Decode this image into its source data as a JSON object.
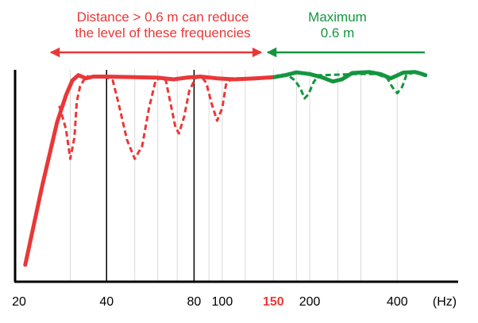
{
  "colors": {
    "red": "#ea3737",
    "green": "#13963f",
    "axis": "#000000",
    "grid": "#d9d9d9",
    "marker": "#000000"
  },
  "annotations": {
    "left_line1": "Distance > 0.6 m can reduce",
    "left_line2": "the level of these frequencies",
    "right_line1": "Maximum",
    "right_line2": "0.6 m"
  },
  "chart_data": {
    "type": "line",
    "xscale": "log",
    "xlim": [
      19.5,
      540
    ],
    "ylim": [
      0,
      100
    ],
    "xticks": [
      {
        "value": 20,
        "label": "20",
        "highlight": false
      },
      {
        "value": 40,
        "label": "40",
        "highlight": false
      },
      {
        "value": 80,
        "label": "80",
        "highlight": false
      },
      {
        "value": 100,
        "label": "100",
        "highlight": false
      },
      {
        "value": 150,
        "label": "150",
        "highlight": true
      },
      {
        "value": 200,
        "label": "200",
        "highlight": false
      },
      {
        "value": 400,
        "label": "400",
        "highlight": false
      }
    ],
    "xunit": "(Hz)",
    "vertical_markers": [
      40,
      80
    ],
    "gridlines": [
      30,
      50,
      60,
      70,
      90,
      100,
      120,
      150,
      180,
      200,
      250,
      300,
      400
    ],
    "boundary": 150,
    "series": [
      {
        "style": "solid",
        "color": "red",
        "points": [
          [
            21,
            8
          ],
          [
            24,
            45
          ],
          [
            27,
            75
          ],
          [
            29,
            88
          ],
          [
            30.5,
            95
          ],
          [
            32,
            97.5
          ],
          [
            34,
            96
          ],
          [
            36,
            96.8
          ],
          [
            40,
            96.8
          ],
          [
            50,
            96.5
          ],
          [
            60,
            96.3
          ],
          [
            68,
            95.5
          ],
          [
            76,
            96.4
          ],
          [
            84,
            96.8
          ],
          [
            96,
            96
          ],
          [
            110,
            95.5
          ],
          [
            130,
            96
          ],
          [
            150,
            96.5
          ]
        ]
      },
      {
        "style": "solid",
        "color": "green",
        "points": [
          [
            150,
            96.5
          ],
          [
            165,
            97.5
          ],
          [
            180,
            98.8
          ],
          [
            200,
            98
          ],
          [
            220,
            96.5
          ],
          [
            240,
            94.5
          ],
          [
            258,
            95.5
          ],
          [
            280,
            98.5
          ],
          [
            320,
            99
          ],
          [
            350,
            98
          ],
          [
            380,
            96
          ],
          [
            420,
            98.7
          ],
          [
            460,
            99
          ],
          [
            480,
            98.3
          ],
          [
            500,
            97.5
          ]
        ]
      },
      {
        "style": "dashed",
        "color": "red",
        "points": [
          [
            27.5,
            83
          ],
          [
            29,
            72
          ],
          [
            30,
            58
          ],
          [
            31,
            68
          ],
          [
            31.6,
            85
          ],
          [
            32.4,
            92
          ],
          [
            34,
            97
          ],
          [
            36,
            96.5
          ],
          [
            40,
            96.5
          ],
          [
            42,
            95
          ],
          [
            44,
            84
          ],
          [
            47,
            67
          ],
          [
            50,
            58
          ],
          [
            53,
            64
          ],
          [
            56,
            82
          ],
          [
            59,
            95
          ],
          [
            62,
            96.5
          ],
          [
            64,
            95
          ],
          [
            66,
            86
          ],
          [
            69,
            73
          ],
          [
            71,
            70
          ],
          [
            74,
            78
          ],
          [
            77,
            90
          ],
          [
            81,
            96.2
          ],
          [
            85,
            96.5
          ],
          [
            88,
            94
          ],
          [
            92,
            84
          ],
          [
            96,
            76
          ],
          [
            100,
            82
          ],
          [
            103,
            93
          ],
          [
            108,
            96
          ],
          [
            120,
            96
          ],
          [
            150,
            96.5
          ]
        ]
      },
      {
        "style": "dashed",
        "color": "green",
        "points": [
          [
            150,
            96.5
          ],
          [
            158,
            97.8
          ],
          [
            168,
            97.5
          ],
          [
            178,
            95
          ],
          [
            186,
            91
          ],
          [
            192,
            86.5
          ],
          [
            198,
            88.5
          ],
          [
            206,
            94
          ],
          [
            214,
            97.5
          ],
          [
            225,
            97.5
          ],
          [
            290,
            98
          ],
          [
            340,
            98
          ],
          [
            370,
            96
          ],
          [
            384,
            92
          ],
          [
            400,
            89
          ],
          [
            416,
            92
          ],
          [
            430,
            97.5
          ],
          [
            450,
            98.5
          ]
        ]
      }
    ]
  }
}
